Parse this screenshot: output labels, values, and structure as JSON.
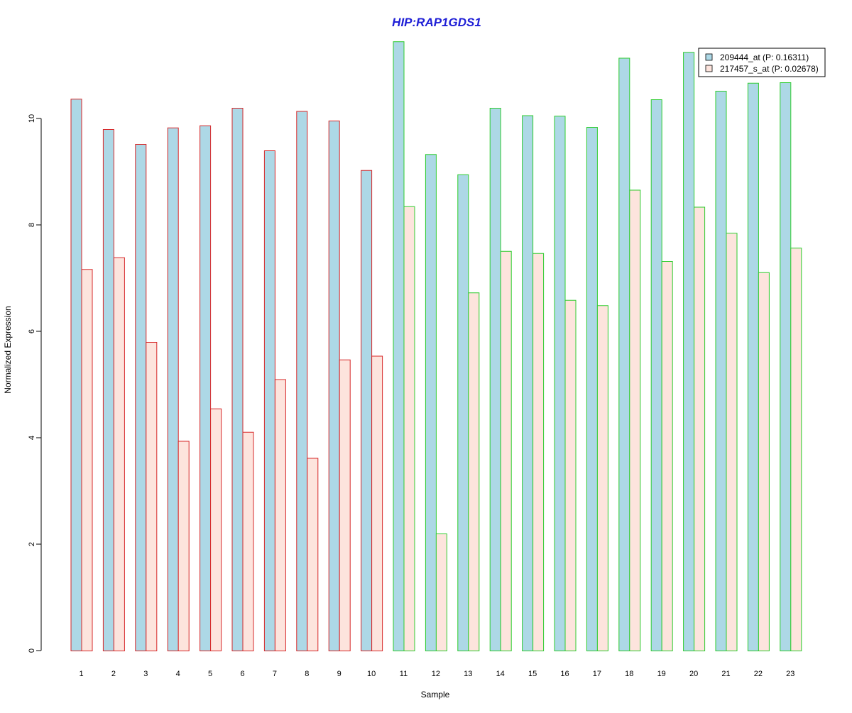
{
  "chart_data": {
    "type": "bar",
    "title": "HIP:RAP1GDS1",
    "xlabel": "Sample",
    "ylabel": "Normalized Expression",
    "categories": [
      "1",
      "2",
      "3",
      "4",
      "5",
      "6",
      "7",
      "8",
      "9",
      "10",
      "11",
      "12",
      "13",
      "14",
      "15",
      "16",
      "17",
      "18",
      "19",
      "20",
      "21",
      "22",
      "23"
    ],
    "ylim": [
      0,
      11.5
    ],
    "yticks": [
      0,
      2,
      4,
      6,
      8,
      10
    ],
    "legend_position": "top-right",
    "series": [
      {
        "name": "209444_at (P: 0.16311)",
        "color": "#add8e6",
        "values": [
          10.37,
          9.8,
          9.52,
          9.83,
          9.87,
          10.2,
          9.4,
          10.14,
          9.96,
          9.03,
          11.45,
          9.33,
          8.95,
          10.2,
          10.06,
          10.05,
          9.84,
          11.14,
          10.36,
          11.25,
          10.52,
          10.67,
          10.68
        ]
      },
      {
        "name": "217457_s_at (P: 0.02678)",
        "color": "#fde4dd",
        "values": [
          7.17,
          7.39,
          5.8,
          3.94,
          4.55,
          4.11,
          5.1,
          3.62,
          5.47,
          5.54,
          8.35,
          2.2,
          6.73,
          7.51,
          7.47,
          6.59,
          6.49,
          8.66,
          7.32,
          8.34,
          7.85,
          7.11,
          7.57
        ]
      }
    ],
    "group_border_colors": [
      "#d62728",
      "#d62728",
      "#d62728",
      "#d62728",
      "#d62728",
      "#d62728",
      "#d62728",
      "#d62728",
      "#d62728",
      "#d62728",
      "#2ecc2e",
      "#2ecc2e",
      "#2ecc2e",
      "#2ecc2e",
      "#2ecc2e",
      "#2ecc2e",
      "#2ecc2e",
      "#2ecc2e",
      "#2ecc2e",
      "#2ecc2e",
      "#2ecc2e",
      "#2ecc2e",
      "#2ecc2e"
    ],
    "title_color": "#1f1fd6"
  }
}
